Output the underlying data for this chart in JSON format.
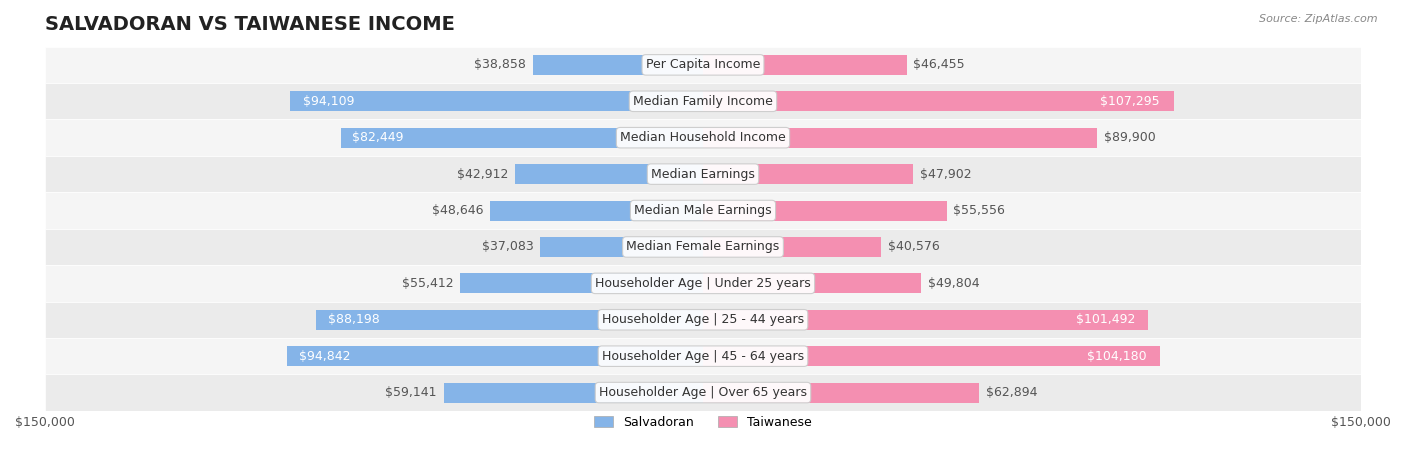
{
  "title": "SALVADORAN VS TAIWANESE INCOME",
  "source": "Source: ZipAtlas.com",
  "categories": [
    "Per Capita Income",
    "Median Family Income",
    "Median Household Income",
    "Median Earnings",
    "Median Male Earnings",
    "Median Female Earnings",
    "Householder Age | Under 25 years",
    "Householder Age | 25 - 44 years",
    "Householder Age | 45 - 64 years",
    "Householder Age | Over 65 years"
  ],
  "salvadoran_values": [
    38858,
    94109,
    82449,
    42912,
    48646,
    37083,
    55412,
    88198,
    94842,
    59141
  ],
  "taiwanese_values": [
    46455,
    107295,
    89900,
    47902,
    55556,
    40576,
    49804,
    101492,
    104180,
    62894
  ],
  "salvadoran_labels": [
    "$38,858",
    "$94,109",
    "$82,449",
    "$42,912",
    "$48,646",
    "$37,083",
    "$55,412",
    "$88,198",
    "$94,842",
    "$59,141"
  ],
  "taiwanese_labels": [
    "$46,455",
    "$107,295",
    "$89,900",
    "$47,902",
    "$55,556",
    "$40,576",
    "$49,804",
    "$101,492",
    "$104,180",
    "$62,894"
  ],
  "salvadoran_color": "#85b4e8",
  "taiwanese_color": "#f48fb1",
  "salvadoran_label_color_normal": "#555555",
  "taiwanese_label_color_normal": "#555555",
  "salvadoran_label_color_white": "#ffffff",
  "taiwanese_label_color_white": "#ffffff",
  "salvadoran_white_threshold": 80000,
  "taiwanese_white_threshold": 95000,
  "max_value": 150000,
  "bar_height": 0.55,
  "row_bg_color": "#f5f5f5",
  "row_alt_color": "#ebebeb",
  "background_color": "#ffffff",
  "legend_salvadoran": "Salvadoran",
  "legend_taiwanese": "Taiwanese",
  "title_fontsize": 14,
  "label_fontsize": 9,
  "category_fontsize": 9,
  "axis_label_fontsize": 9
}
